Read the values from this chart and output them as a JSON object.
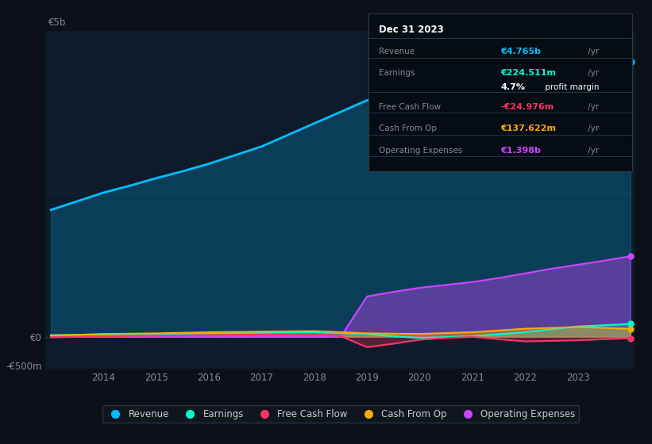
{
  "background_color": "#0d1117",
  "plot_bg_color": "#0d1b2a",
  "years": [
    2013,
    2013.5,
    2014,
    2014.5,
    2015,
    2015.5,
    2016,
    2016.5,
    2017,
    2017.5,
    2018,
    2018.5,
    2019,
    2019.5,
    2020,
    2020.5,
    2021,
    2021.5,
    2022,
    2022.5,
    2023,
    2023.5,
    2024
  ],
  "revenue": [
    2.2,
    2.35,
    2.5,
    2.62,
    2.75,
    2.87,
    3.0,
    3.15,
    3.3,
    3.5,
    3.7,
    3.9,
    4.1,
    4.05,
    3.9,
    3.55,
    3.2,
    3.4,
    3.6,
    4.0,
    4.5,
    4.62,
    4.765
  ],
  "earnings": [
    0.03,
    0.035,
    0.04,
    0.045,
    0.05,
    0.055,
    0.06,
    0.065,
    0.07,
    0.075,
    0.08,
    0.065,
    0.05,
    0.01,
    -0.02,
    -0.005,
    0.01,
    0.045,
    0.08,
    0.13,
    0.18,
    0.2,
    0.224
  ],
  "free_cash_flow": [
    -0.01,
    0.0,
    0.01,
    0.015,
    0.02,
    0.025,
    0.03,
    0.035,
    0.04,
    0.045,
    0.05,
    0.01,
    -0.18,
    -0.12,
    -0.05,
    -0.02,
    0.0,
    -0.04,
    -0.08,
    -0.07,
    -0.06,
    -0.04,
    -0.025
  ],
  "cash_from_op": [
    0.02,
    0.035,
    0.05,
    0.055,
    0.06,
    0.07,
    0.08,
    0.085,
    0.09,
    0.095,
    0.1,
    0.08,
    0.06,
    0.055,
    0.05,
    0.065,
    0.08,
    0.11,
    0.14,
    0.155,
    0.17,
    0.154,
    0.137
  ],
  "operating_expenses": [
    0.0,
    0.0,
    0.0,
    0.0,
    0.0,
    0.0,
    0.0,
    0.0,
    0.0,
    0.0,
    0.0,
    0.0,
    0.7,
    0.78,
    0.85,
    0.9,
    0.95,
    1.02,
    1.1,
    1.18,
    1.25,
    1.32,
    1.398
  ],
  "ylim": [
    -0.55,
    5.3
  ],
  "xticks": [
    2014,
    2015,
    2016,
    2017,
    2018,
    2019,
    2020,
    2021,
    2022,
    2023
  ],
  "y5b_label": "€5b",
  "y0_label": "€0",
  "ym500_label": "-€500m",
  "revenue_color": "#00bfff",
  "earnings_color": "#00ffcc",
  "free_cash_flow_color": "#ff3366",
  "cash_from_op_color": "#ffaa00",
  "operating_expenses_color": "#cc44ff",
  "info_box": {
    "date": "Dec 31 2023",
    "revenue_label": "Revenue",
    "revenue_val": "€4.765b",
    "earnings_label": "Earnings",
    "earnings_val": "€224.511m",
    "profit_margin": "4.7%",
    "profit_margin_text": "profit margin",
    "fcf_label": "Free Cash Flow",
    "fcf_val": "-€24.976m",
    "cash_op_label": "Cash From Op",
    "cash_op_val": "€137.622m",
    "op_exp_label": "Operating Expenses",
    "op_exp_val": "€1.398b"
  },
  "legend_items": [
    "Revenue",
    "Earnings",
    "Free Cash Flow",
    "Cash From Op",
    "Operating Expenses"
  ]
}
